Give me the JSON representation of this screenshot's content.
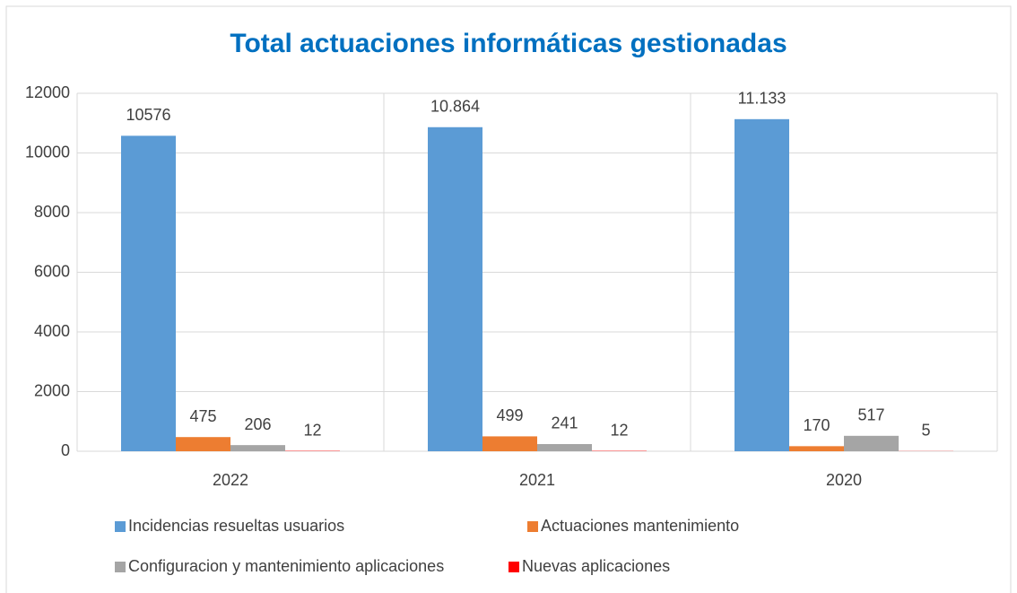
{
  "chart_data": {
    "type": "bar",
    "title": "Total actuaciones informáticas gestionadas",
    "categories": [
      "2022",
      "2021",
      "2020"
    ],
    "series": [
      {
        "name": "Incidencias resueltas usuarios",
        "color": "#5b9bd5",
        "values": [
          10576,
          10864,
          11133
        ],
        "value_labels": [
          "10576",
          "10.864",
          "11.133"
        ]
      },
      {
        "name": "Actuaciones mantenimiento",
        "color": "#ed7d31",
        "values": [
          475,
          499,
          170
        ]
      },
      {
        "name": "Configuracion y mantenimiento aplicaciones",
        "color": "#a5a5a5",
        "values": [
          206,
          241,
          517
        ]
      },
      {
        "name": "Nuevas aplicaciones",
        "color": "#ff0000",
        "values": [
          12,
          12,
          5
        ]
      }
    ],
    "ylim": [
      0,
      12000
    ],
    "yticks": [
      0,
      2000,
      4000,
      6000,
      8000,
      10000,
      12000
    ],
    "grid": true,
    "legend": "bottom"
  }
}
